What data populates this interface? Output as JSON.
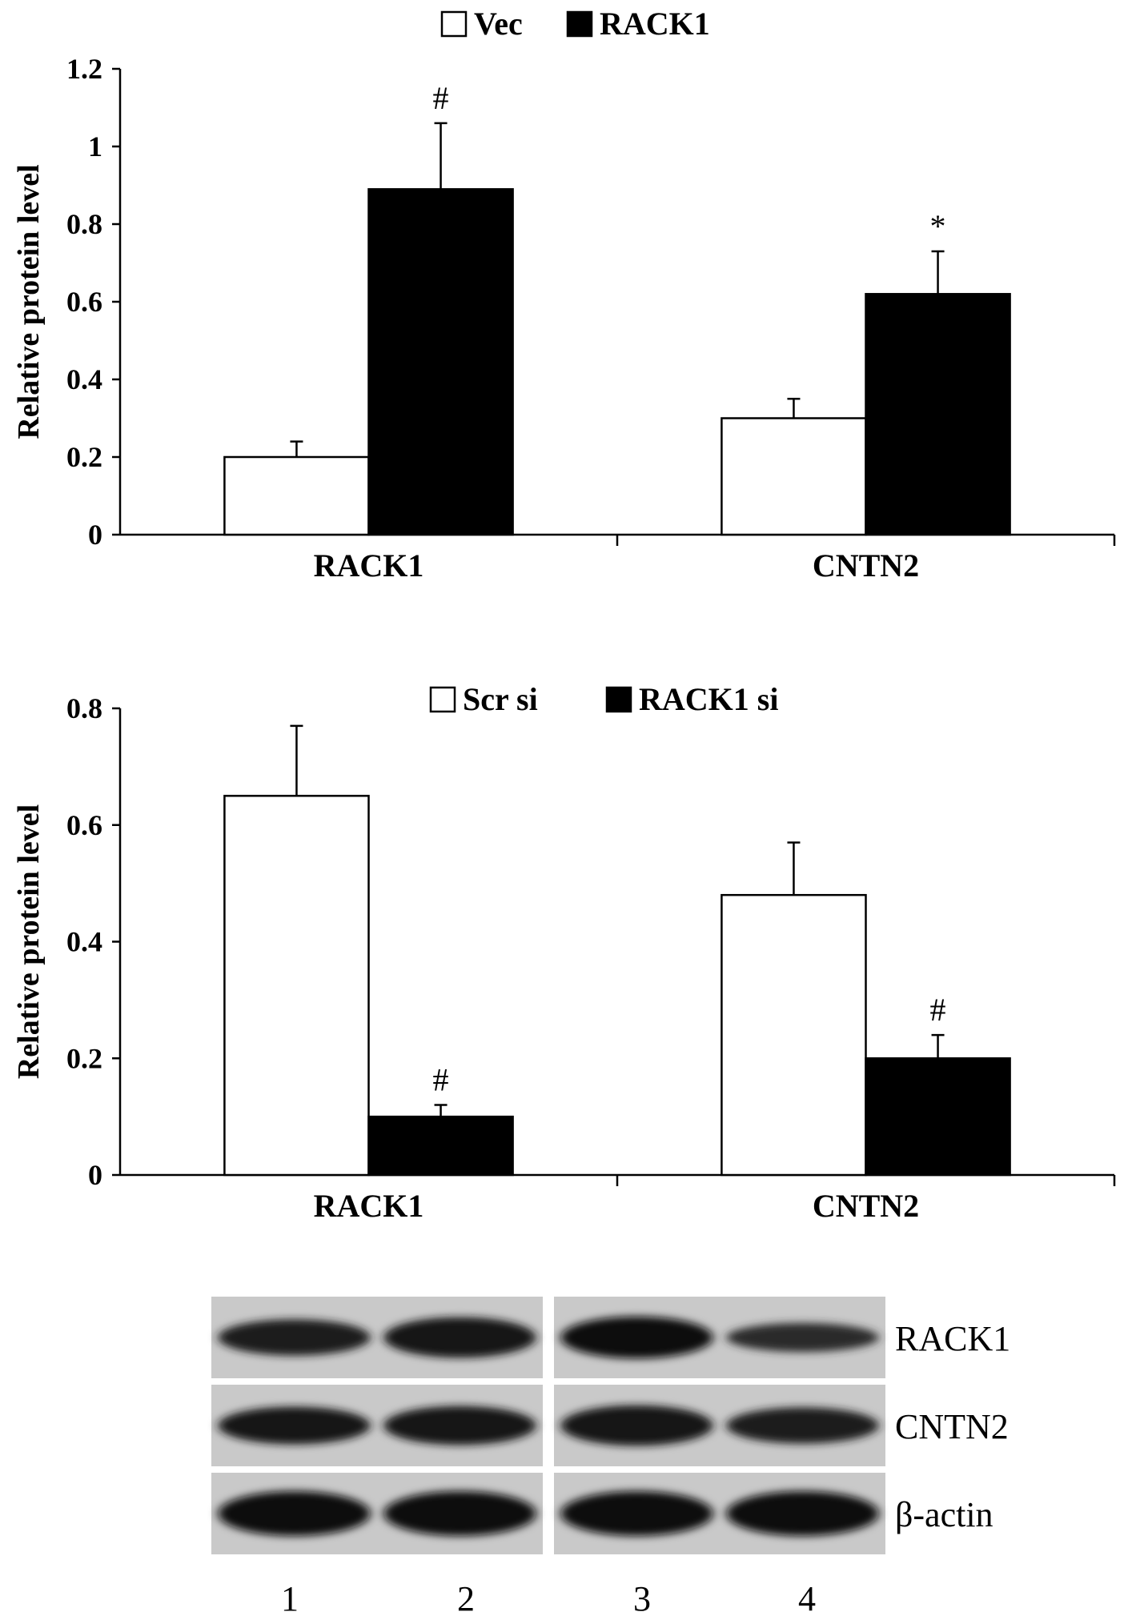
{
  "chart_data": [
    {
      "type": "bar",
      "categories": [
        "RACK1",
        "CNTN2"
      ],
      "series": [
        {
          "name": "Vec",
          "values": [
            0.2,
            0.3
          ],
          "errors": [
            0.04,
            0.05
          ],
          "fill": "#ffffff"
        },
        {
          "name": "RACK1",
          "values": [
            0.89,
            0.62
          ],
          "errors": [
            0.17,
            0.11
          ],
          "fill": "#000000"
        }
      ],
      "annotations": [
        {
          "category": "RACK1",
          "series": "RACK1",
          "text": "#"
        },
        {
          "category": "CNTN2",
          "series": "RACK1",
          "text": "*"
        }
      ],
      "ylabel": "Relative protein level",
      "ylim": [
        0,
        1.2
      ],
      "yticks": [
        "0",
        "0.2",
        "0.4",
        "0.6",
        "0.8",
        "1",
        "1.2"
      ],
      "legend_position": "top-center",
      "grid": false
    },
    {
      "type": "bar",
      "categories": [
        "RACK1",
        "CNTN2"
      ],
      "series": [
        {
          "name": "Scr si",
          "values": [
            0.65,
            0.48
          ],
          "errors": [
            0.12,
            0.09
          ],
          "fill": "#ffffff"
        },
        {
          "name": "RACK1 si",
          "values": [
            0.1,
            0.2
          ],
          "errors": [
            0.02,
            0.04
          ],
          "fill": "#000000"
        }
      ],
      "annotations": [
        {
          "category": "RACK1",
          "series": "RACK1 si",
          "text": "#"
        },
        {
          "category": "CNTN2",
          "series": "RACK1 si",
          "text": "#"
        }
      ],
      "ylabel": "Relative protein level",
      "ylim": [
        0,
        0.8
      ],
      "yticks": [
        "0",
        "0.2",
        "0.4",
        "0.6",
        "0.8"
      ],
      "legend_position": "top-center",
      "grid": false
    }
  ],
  "blot": {
    "rows": [
      {
        "label": "RACK1",
        "intensities": [
          0.7,
          0.85,
          0.9,
          0.45
        ]
      },
      {
        "label": "CNTN2",
        "intensities": [
          0.75,
          0.8,
          0.85,
          0.7
        ]
      },
      {
        "label": "β-actin",
        "intensities": [
          1.0,
          1.0,
          1.0,
          1.0
        ]
      }
    ],
    "lanes": [
      "1",
      "2",
      "3",
      "4"
    ]
  }
}
